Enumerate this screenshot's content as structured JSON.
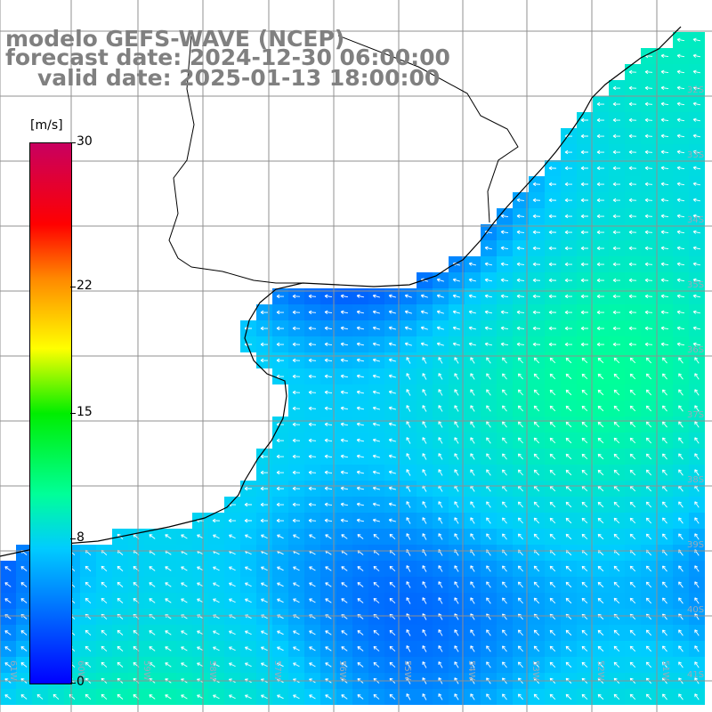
{
  "header": {
    "model": "modelo GEFS-WAVE (NCEP)",
    "forecast_date": "forecast date: 2024-12-30 06:00:00",
    "valid_date": "valid date: 2025-01-13 18:00:00"
  },
  "colorbar": {
    "units": "[m/s]",
    "ticks": [
      {
        "label": "30",
        "value": 30
      },
      {
        "label": "22",
        "value": 22
      },
      {
        "label": "15",
        "value": 15
      },
      {
        "label": "8",
        "value": 8
      },
      {
        "label": "0",
        "value": 0
      }
    ],
    "min": 0,
    "max": 30,
    "colors": [
      "#0000ff",
      "#00ccff",
      "#00ff99",
      "#00ee00",
      "#ffff00",
      "#ff8800",
      "#ff0000",
      "#c80060"
    ]
  },
  "map": {
    "land_color": "#ffffff",
    "grid_color": "#909090",
    "arrow_color": "#ffffff",
    "lat_labels": [
      "32S",
      "33S",
      "34S",
      "35S",
      "36S",
      "37S",
      "38S",
      "39S",
      "40S",
      "41S"
    ],
    "lon_labels": [
      "61W",
      "60W",
      "59W",
      "58W",
      "57W",
      "56W",
      "55W",
      "54W",
      "53W",
      "52W",
      "51W"
    ]
  }
}
